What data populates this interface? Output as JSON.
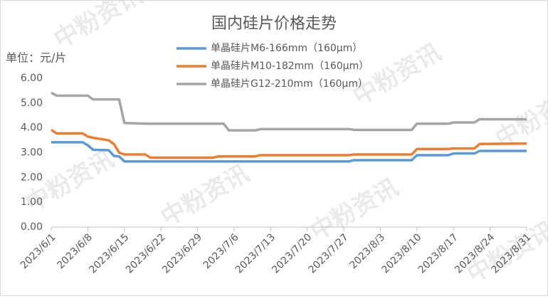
{
  "chart_data": {
    "type": "line",
    "title": "国内硅片价格走势",
    "y_unit_label": "单位：元/片",
    "watermark": "中粉资讯",
    "x": [
      "2023/6/1",
      "2023/6/2",
      "2023/6/7",
      "2023/6/8",
      "2023/6/9",
      "2023/6/12",
      "2023/6/13",
      "2023/6/14",
      "2023/6/15",
      "2023/6/19",
      "2023/6/20",
      "2023/7/2",
      "2023/7/3",
      "2023/7/4",
      "2023/7/5",
      "2023/7/10",
      "2023/7/11",
      "2023/7/28",
      "2023/7/29",
      "2023/8/9",
      "2023/8/10",
      "2023/8/16",
      "2023/8/17",
      "2023/8/21",
      "2023/8/22",
      "2023/8/31"
    ],
    "series": [
      {
        "name": "单晶硅片M6-166mm（160µm）",
        "color": "#5b9bd5",
        "values": [
          3.42,
          3.42,
          3.42,
          3.3,
          3.12,
          3.1,
          2.87,
          2.85,
          2.65,
          2.65,
          2.65,
          2.65,
          2.65,
          2.65,
          2.65,
          2.65,
          2.65,
          2.65,
          2.7,
          2.7,
          2.9,
          2.9,
          2.97,
          2.97,
          3.07,
          3.07
        ]
      },
      {
        "name": "单晶硅片M10-182mm（160µm）",
        "color": "#ed7d31",
        "values": [
          3.92,
          3.78,
          3.78,
          3.65,
          3.6,
          3.5,
          3.35,
          3.0,
          2.93,
          2.93,
          2.8,
          2.8,
          2.85,
          2.85,
          2.85,
          2.85,
          2.9,
          2.9,
          2.93,
          2.93,
          3.15,
          3.15,
          3.17,
          3.17,
          3.35,
          3.37
        ]
      },
      {
        "name": "单晶硅片G12-210mm（160µm）",
        "color": "#a5a5a5",
        "values": [
          5.42,
          5.3,
          5.3,
          5.3,
          5.15,
          5.15,
          5.15,
          5.15,
          4.2,
          4.17,
          4.17,
          4.17,
          4.17,
          4.17,
          3.9,
          3.9,
          3.95,
          3.95,
          3.92,
          3.92,
          4.17,
          4.17,
          4.22,
          4.22,
          4.35,
          4.35
        ]
      }
    ],
    "xticks": [
      "2023/6/1",
      "2023/6/8",
      "2023/6/15",
      "2023/6/22",
      "2023/6/29",
      "2023/7/6",
      "2023/7/13",
      "2023/7/20",
      "2023/7/27",
      "2023/8/3",
      "2023/8/10",
      "2023/8/17",
      "2023/8/24",
      "2023/8/31"
    ],
    "ylim": [
      0,
      6
    ],
    "yticks": [
      {
        "value": 0,
        "label": "0.00"
      },
      {
        "value": 1,
        "label": "1.00"
      },
      {
        "value": 2,
        "label": "2.00"
      },
      {
        "value": 3,
        "label": "3.00"
      },
      {
        "value": 4,
        "label": "4.00"
      },
      {
        "value": 5,
        "label": "5.00"
      },
      {
        "value": 6,
        "label": "6.00"
      }
    ],
    "grid": false
  }
}
